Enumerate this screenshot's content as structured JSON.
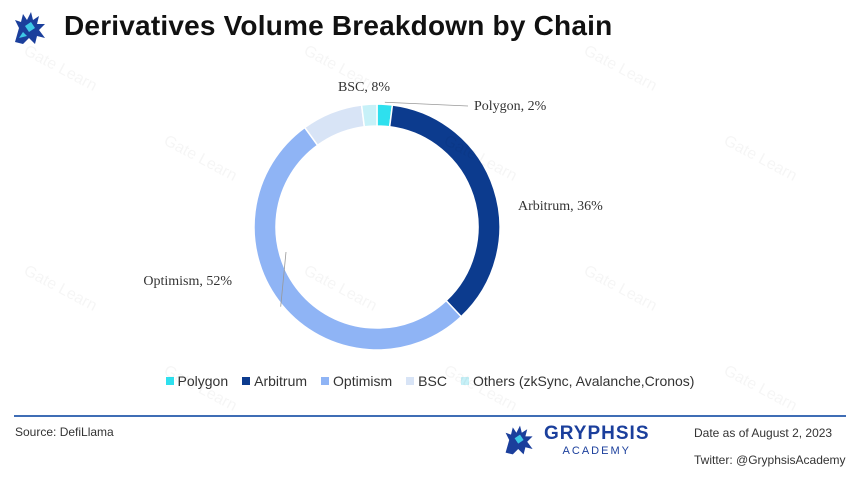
{
  "title": "Derivatives Volume Breakdown by Chain",
  "chart_data": {
    "type": "pie",
    "subtype": "donut",
    "slices": [
      {
        "name": "Polygon",
        "value": 2,
        "label": "Polygon, 2%",
        "color": "#2ee0ee"
      },
      {
        "name": "Arbitrum",
        "value": 36,
        "label": "Arbitrum, 36%",
        "color": "#0c3b8e"
      },
      {
        "name": "Optimism",
        "value": 52,
        "label": "Optimism, 52%",
        "color": "#8fb4f5"
      },
      {
        "name": "BSC",
        "value": 8,
        "label": "BSC, 8%",
        "color": "#d8e4f6"
      },
      {
        "name": "Others (zkSync, Avalanche,Cronos)",
        "value": 2,
        "label": "",
        "color": "#c7f1f8"
      }
    ],
    "legend_position": "bottom"
  },
  "footer": {
    "source": "Source: DefiLlama",
    "brand_name": "GRYPHSIS",
    "brand_sub": "ACADEMY",
    "date": "Date as of August 2, 2023",
    "twitter": "Twitter: @GryphsisAcademy"
  },
  "watermark": "Gate Learn",
  "icons": {
    "logo": "gryphon-logo-icon",
    "brand": "gryphon-brand-icon"
  }
}
